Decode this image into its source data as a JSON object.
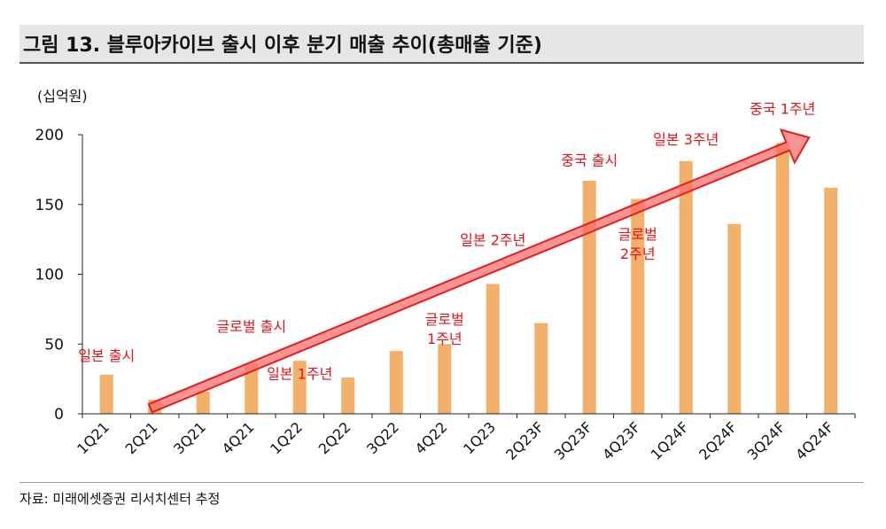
{
  "title": "그림 13. 블루아카이브 출시 이후 분기 매출 추이(총매출 기준)",
  "source": "자료: 미래에셋증권 리서치센터 추정",
  "colors": {
    "bar": "#F2B06A",
    "arrow_fill": "#F56A6A",
    "arrow_stroke": "#E02020",
    "annotation": "#E0141C"
  },
  "chart_data": {
    "type": "bar",
    "unit_label": "(십억원)",
    "categories": [
      "1Q21",
      "2Q21",
      "3Q21",
      "4Q21",
      "1Q22",
      "2Q22",
      "3Q22",
      "4Q22",
      "1Q23",
      "2Q23F",
      "3Q23F",
      "4Q23F",
      "1Q24F",
      "2Q24F",
      "3Q24F",
      "4Q24F"
    ],
    "values": [
      28,
      10,
      16,
      36,
      38,
      26,
      45,
      50,
      93,
      65,
      167,
      154,
      181,
      136,
      194,
      162
    ],
    "ylim": [
      0,
      200
    ],
    "yticks": [
      0,
      50,
      100,
      150,
      200
    ],
    "grid": false,
    "annotations": [
      {
        "lines": [
          "일본 출시"
        ],
        "category": "1Q21",
        "y": 38
      },
      {
        "lines": [
          "글로벌 출시"
        ],
        "category": "4Q21",
        "y": 59
      },
      {
        "lines": [
          "일본 1주년"
        ],
        "category": "1Q22",
        "y": 25
      },
      {
        "lines": [
          "글로벌",
          "1주년"
        ],
        "category": "4Q22",
        "y": 64
      },
      {
        "lines": [
          "일본 2주년"
        ],
        "category": "1Q23",
        "y": 121
      },
      {
        "lines": [
          "중국 출시"
        ],
        "category": "3Q23F",
        "y": 178
      },
      {
        "lines": [
          "글로벌",
          "2주년"
        ],
        "category": "4Q23F",
        "y": 125
      },
      {
        "lines": [
          "일본 3주년"
        ],
        "category": "1Q24F",
        "y": 193
      },
      {
        "lines": [
          "중국 1주년"
        ],
        "category": "3Q24F",
        "y": 215
      }
    ],
    "trend_arrow": {
      "from": {
        "category": "2Q21",
        "y": 4
      },
      "to": {
        "category": "3Q24F",
        "y": 198
      }
    }
  }
}
